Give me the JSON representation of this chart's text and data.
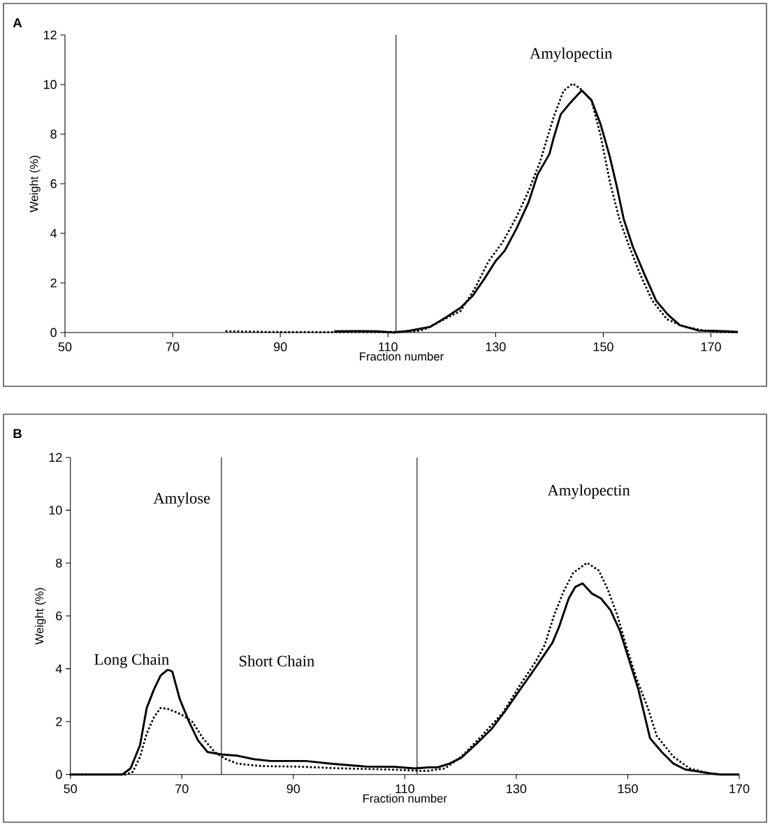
{
  "chart_data": [
    {
      "type": "line",
      "title": "A",
      "xlabel": "Fraction number",
      "ylabel": "Weight (%)",
      "xlim": [
        50,
        175
      ],
      "xticks": [
        50,
        70,
        90,
        110,
        130,
        150,
        170
      ],
      "ylim": [
        0,
        12
      ],
      "yticks": [
        0,
        2,
        4,
        6,
        8,
        10,
        12
      ],
      "ref_lines": [
        {
          "axis": "x",
          "value": 111.5,
          "color": "#000000"
        }
      ],
      "annotations": [
        "Amylopectin"
      ],
      "series": [
        {
          "color": "#000000",
          "line_style": "solid",
          "x": [
            100,
            104,
            107.9,
            111.2,
            114,
            116.2,
            117.9,
            120.9,
            123.5,
            125.7,
            127.8,
            130,
            131.7,
            133.9,
            136.1,
            137.8,
            140,
            140.8,
            142.1,
            143.9,
            146,
            147.8,
            149.5,
            151.2,
            152.5,
            153.8,
            155.5,
            157.7,
            159.8,
            162,
            164.2,
            167.7,
            172.9,
            175
          ],
          "values": [
            0.05,
            0.06,
            0.05,
            0,
            0.07,
            0.16,
            0.23,
            0.63,
            1.0,
            1.47,
            2.13,
            2.88,
            3.3,
            4.2,
            5.24,
            6.37,
            7.2,
            7.86,
            8.8,
            9.27,
            9.76,
            9.37,
            8.4,
            7.1,
            5.9,
            4.57,
            3.45,
            2.32,
            1.29,
            0.72,
            0.3,
            0.08,
            0.05,
            0.02
          ]
        },
        {
          "color": "#000000",
          "line_style": "dotted",
          "x": [
            80,
            90,
            110,
            115,
            116.6,
            123.5,
            126.1,
            128.7,
            131.3,
            133.9,
            136.1,
            138.2,
            140.8,
            142.6,
            144.3,
            145.6,
            147.8,
            149.5,
            151.2,
            153,
            154.7,
            156.9,
            159.1,
            161.8,
            164.8,
            168.7,
            171.3,
            175
          ],
          "values": [
            0.05,
            0.02,
            0.02,
            0.05,
            0.11,
            0.87,
            1.76,
            2.88,
            3.64,
            4.67,
            5.7,
            6.85,
            8.7,
            9.74,
            10.04,
            9.86,
            9.37,
            7.95,
            6.1,
            4.57,
            3.55,
            2.32,
            1.29,
            0.54,
            0.25,
            0.08,
            0.02,
            0.02
          ]
        }
      ]
    },
    {
      "type": "line",
      "title": "B",
      "xlabel": "Fraction number",
      "ylabel": "Weight (%)",
      "xlim": [
        50,
        170
      ],
      "xticks": [
        50,
        70,
        90,
        110,
        130,
        150,
        170
      ],
      "ylim": [
        0,
        12
      ],
      "yticks": [
        0,
        2,
        4,
        6,
        8,
        10,
        12
      ],
      "ref_lines": [
        {
          "axis": "x",
          "value": 77.1,
          "color": "#000000"
        },
        {
          "axis": "x",
          "value": 112.2,
          "color": "#000000"
        }
      ],
      "annotations": [
        "Amylose",
        "Long Chain",
        "Short Chain",
        "Amylopectin"
      ],
      "series": [
        {
          "color": "#000000",
          "line_style": "solid",
          "x": [
            50,
            59.3,
            60.8,
            62.5,
            63.7,
            65,
            66.2,
            67.5,
            68.3,
            69.6,
            71.3,
            72.9,
            74.6,
            77.1,
            80,
            82.9,
            85.9,
            92.2,
            96.8,
            103.1,
            108.1,
            111.8,
            114.3,
            115.9,
            118,
            120.1,
            122.6,
            125.6,
            128.1,
            131,
            133.5,
            136.5,
            137.7,
            139.4,
            140.6,
            141.9,
            143.6,
            145.2,
            146.9,
            148.6,
            150.7,
            151.9,
            154,
            156.1,
            158.2,
            160.3,
            164.5,
            166.6,
            170
          ],
          "values": [
            0,
            0,
            0.23,
            1.11,
            2.52,
            3.22,
            3.75,
            3.97,
            3.89,
            2.87,
            1.99,
            1.29,
            0.85,
            0.76,
            0.71,
            0.58,
            0.51,
            0.51,
            0.41,
            0.3,
            0.29,
            0.23,
            0.27,
            0.27,
            0.41,
            0.63,
            1.11,
            1.73,
            2.43,
            3.31,
            4.06,
            4.99,
            5.6,
            6.66,
            7.1,
            7.23,
            6.84,
            6.66,
            6.22,
            5.43,
            4.02,
            3.22,
            1.37,
            0.85,
            0.41,
            0.19,
            0.05,
            0,
            0
          ]
        },
        {
          "color": "#000000",
          "line_style": "dotted",
          "x": [
            50,
            59,
            60,
            61.2,
            62.5,
            63.7,
            65,
            66.2,
            67.5,
            69.2,
            70.4,
            71.9,
            73.8,
            75.9,
            77.9,
            80,
            84.2,
            90.5,
            98.9,
            107.2,
            112.7,
            114.2,
            117.2,
            120.1,
            123.8,
            127.6,
            131,
            133.5,
            135.1,
            136.8,
            138.5,
            140.2,
            142.7,
            144.8,
            146.4,
            148.1,
            149.8,
            151.5,
            153.6,
            155.2,
            158.2,
            161.1,
            164.4,
            166.5,
            170
          ],
          "values": [
            0,
            0,
            0,
            0.1,
            0.67,
            1.55,
            2.17,
            2.52,
            2.48,
            2.34,
            2.21,
            1.99,
            1.37,
            0.85,
            0.58,
            0.41,
            0.32,
            0.3,
            0.23,
            0.19,
            0.14,
            0.14,
            0.23,
            0.67,
            1.46,
            2.34,
            3.49,
            4.28,
            4.9,
            6.04,
            6.93,
            7.63,
            8.01,
            7.72,
            7.01,
            6.04,
            4.81,
            3.67,
            2.52,
            1.46,
            0.67,
            0.23,
            0.05,
            0,
            0
          ]
        }
      ]
    }
  ]
}
